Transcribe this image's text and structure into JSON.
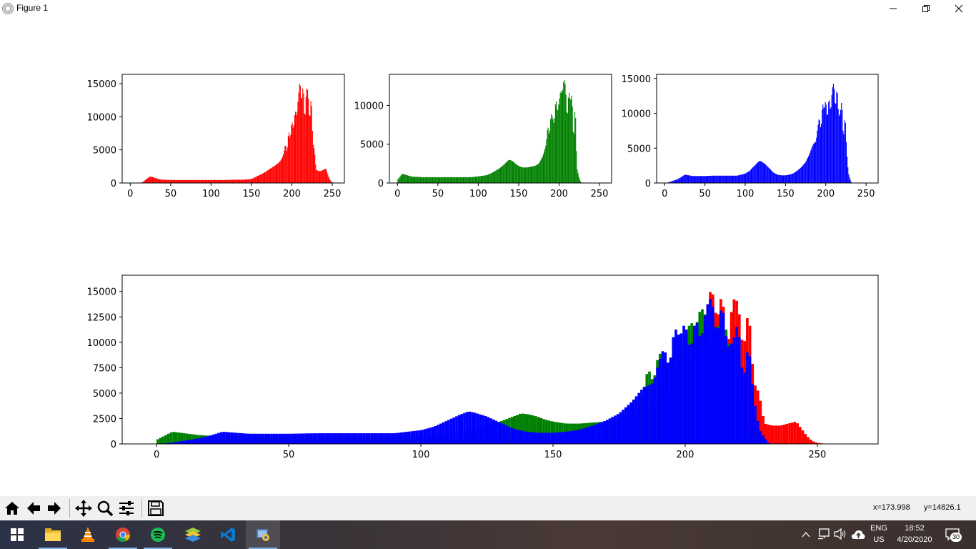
{
  "window": {
    "title": "Figure 1"
  },
  "toolbar": {
    "buttons": [
      {
        "name": "home-icon"
      },
      {
        "name": "back-arrow-icon"
      },
      {
        "name": "forward-arrow-icon"
      },
      {
        "name": "pan-icon"
      },
      {
        "name": "zoom-icon"
      },
      {
        "name": "configure-subplots-icon"
      },
      {
        "name": "save-icon"
      }
    ],
    "x_readout": "x=173.998",
    "y_readout": "y=14826.1"
  },
  "taskbar": {
    "apps": [
      "windows-start-icon",
      "file-explorer-icon",
      "vlc-icon",
      "chrome-icon",
      "spotify-icon",
      "bluestacks-icon",
      "vscode-icon",
      "python-icon"
    ],
    "language": "ENG",
    "region": "US",
    "time": "18:52",
    "date": "4/20/2020",
    "notifications": "30"
  },
  "chart_data": [
    {
      "type": "bar",
      "color": "#ff0000",
      "xlim": [
        -10,
        265
      ],
      "ylim": [
        0,
        16400
      ],
      "xticks": [
        0,
        50,
        100,
        150,
        200,
        250
      ],
      "yticks": [
        0,
        5000,
        10000,
        15000
      ],
      "x": [
        0,
        5,
        10,
        15,
        20,
        25,
        30,
        35,
        40,
        50,
        60,
        70,
        80,
        90,
        100,
        110,
        120,
        130,
        140,
        150,
        155,
        160,
        165,
        170,
        175,
        180,
        185,
        188,
        190,
        192,
        194,
        196,
        198,
        200,
        202,
        204,
        206,
        208,
        210,
        212,
        214,
        216,
        218,
        220,
        222,
        224,
        226,
        228,
        230,
        233,
        236,
        239,
        242,
        244,
        246,
        248,
        250,
        252,
        254,
        256
      ],
      "values": [
        0,
        0,
        0,
        100,
        600,
        1000,
        800,
        600,
        500,
        450,
        450,
        450,
        450,
        450,
        450,
        450,
        450,
        500,
        500,
        600,
        900,
        1200,
        1500,
        1900,
        2300,
        2700,
        3200,
        3800,
        4500,
        6000,
        4500,
        8000,
        6500,
        9500,
        8000,
        11000,
        10000,
        13000,
        15600,
        12000,
        15000,
        9000,
        14300,
        14000,
        9000,
        13500,
        6000,
        5000,
        2000,
        1800,
        1800,
        2000,
        2200,
        1500,
        800,
        300,
        100,
        50,
        0,
        0
      ]
    },
    {
      "type": "bar",
      "color": "#008000",
      "xlim": [
        -10,
        265
      ],
      "ylim": [
        0,
        14000
      ],
      "xticks": [
        0,
        50,
        100,
        150,
        200,
        250
      ],
      "yticks": [
        0,
        5000,
        10000
      ],
      "x": [
        0,
        3,
        6,
        9,
        12,
        15,
        20,
        25,
        30,
        40,
        50,
        60,
        70,
        80,
        90,
        100,
        110,
        115,
        120,
        125,
        130,
        135,
        138,
        141,
        144,
        147,
        150,
        155,
        160,
        165,
        170,
        175,
        180,
        184,
        186,
        188,
        190,
        192,
        194,
        196,
        198,
        200,
        202,
        204,
        206,
        208,
        210,
        212,
        214,
        216,
        218,
        220,
        222,
        224,
        226,
        228,
        230,
        232,
        234
      ],
      "values": [
        400,
        800,
        1200,
        1100,
        1000,
        900,
        800,
        800,
        750,
        750,
        750,
        750,
        750,
        750,
        750,
        850,
        1000,
        1200,
        1500,
        1800,
        2200,
        2700,
        3000,
        2900,
        2700,
        2400,
        2200,
        2000,
        2000,
        2100,
        2200,
        2500,
        3500,
        5000,
        7500,
        6000,
        9000,
        8500,
        7500,
        11000,
        9000,
        10500,
        12000,
        11500,
        13500,
        12500,
        8000,
        12000,
        10500,
        11500,
        5000,
        10500,
        2000,
        1000,
        300,
        0,
        0,
        0,
        0
      ]
    },
    {
      "type": "bar",
      "color": "#0000ff",
      "xlim": [
        -10,
        265
      ],
      "ylim": [
        0,
        15600
      ],
      "xticks": [
        0,
        50,
        100,
        150,
        200,
        250
      ],
      "yticks": [
        0,
        5000,
        10000,
        15000
      ],
      "x": [
        0,
        5,
        10,
        15,
        20,
        25,
        30,
        35,
        40,
        50,
        60,
        70,
        80,
        90,
        100,
        105,
        110,
        115,
        118,
        120,
        125,
        130,
        135,
        140,
        145,
        150,
        155,
        160,
        165,
        170,
        175,
        180,
        184,
        188,
        190,
        192,
        194,
        196,
        198,
        200,
        202,
        204,
        206,
        208,
        210,
        212,
        214,
        216,
        218,
        220,
        222,
        224,
        226,
        228,
        230,
        232,
        234,
        236
      ],
      "values": [
        0,
        100,
        300,
        500,
        800,
        1200,
        1100,
        1000,
        1000,
        1000,
        1050,
        1050,
        1050,
        1050,
        1350,
        1700,
        2300,
        2900,
        3200,
        3100,
        2700,
        2100,
        1500,
        1200,
        1100,
        1100,
        1200,
        1400,
        1800,
        2300,
        3000,
        4200,
        5500,
        6000,
        8000,
        9500,
        7500,
        11500,
        10500,
        12000,
        9000,
        12500,
        10000,
        13500,
        14500,
        10500,
        14000,
        9500,
        10000,
        12000,
        6000,
        10000,
        4500,
        1500,
        600,
        0,
        0,
        0
      ]
    },
    {
      "type": "bar",
      "series": [
        {
          "color": "#ff0000",
          "x": [
            0,
            5,
            10,
            15,
            20,
            25,
            30,
            35,
            40,
            50,
            60,
            70,
            80,
            90,
            100,
            110,
            120,
            130,
            140,
            150,
            155,
            160,
            165,
            170,
            175,
            180,
            185,
            188,
            190,
            192,
            194,
            196,
            198,
            200,
            202,
            204,
            206,
            208,
            210,
            212,
            214,
            216,
            218,
            220,
            222,
            224,
            226,
            228,
            230,
            233,
            236,
            239,
            242,
            244,
            246,
            248,
            250,
            252,
            254,
            256
          ],
          "values": [
            0,
            0,
            0,
            100,
            600,
            1000,
            800,
            600,
            500,
            450,
            450,
            450,
            450,
            450,
            450,
            450,
            450,
            500,
            500,
            600,
            900,
            1200,
            1500,
            1900,
            2300,
            2700,
            3200,
            3800,
            4500,
            6000,
            4500,
            8000,
            6500,
            9500,
            8000,
            11000,
            10000,
            13000,
            15600,
            12000,
            15000,
            9000,
            14300,
            14000,
            9000,
            13500,
            6000,
            5000,
            2000,
            1800,
            1800,
            2000,
            2200,
            1500,
            800,
            300,
            100,
            50,
            0,
            0
          ]
        },
        {
          "color": "#008000",
          "x": [
            0,
            3,
            6,
            9,
            12,
            15,
            20,
            25,
            30,
            40,
            50,
            60,
            70,
            80,
            90,
            100,
            110,
            115,
            120,
            125,
            130,
            135,
            138,
            141,
            144,
            147,
            150,
            155,
            160,
            165,
            170,
            175,
            180,
            184,
            186,
            188,
            190,
            192,
            194,
            196,
            198,
            200,
            202,
            204,
            206,
            208,
            210,
            212,
            214,
            216,
            218,
            220,
            222,
            224,
            226,
            228,
            230,
            232,
            234
          ],
          "values": [
            400,
            800,
            1200,
            1100,
            1000,
            900,
            800,
            800,
            750,
            750,
            750,
            750,
            750,
            750,
            750,
            850,
            1000,
            1200,
            1500,
            1800,
            2200,
            2700,
            3000,
            2900,
            2700,
            2400,
            2200,
            2000,
            2000,
            2100,
            2200,
            2500,
            3500,
            5000,
            7500,
            6000,
            9000,
            8500,
            7500,
            11000,
            9000,
            10500,
            12000,
            11500,
            13500,
            12500,
            8000,
            12000,
            10500,
            11500,
            5000,
            10500,
            2000,
            1000,
            300,
            0,
            0,
            0,
            0
          ]
        },
        {
          "color": "#0000ff",
          "x": [
            0,
            5,
            10,
            15,
            20,
            25,
            30,
            35,
            40,
            50,
            60,
            70,
            80,
            90,
            100,
            105,
            110,
            115,
            118,
            120,
            125,
            130,
            135,
            140,
            145,
            150,
            155,
            160,
            165,
            170,
            175,
            180,
            184,
            188,
            190,
            192,
            194,
            196,
            198,
            200,
            202,
            204,
            206,
            208,
            210,
            212,
            214,
            216,
            218,
            220,
            222,
            224,
            226,
            228,
            230,
            232,
            234,
            236
          ],
          "values": [
            0,
            100,
            300,
            500,
            800,
            1200,
            1100,
            1000,
            1000,
            1000,
            1050,
            1050,
            1050,
            1050,
            1350,
            1700,
            2300,
            2900,
            3200,
            3100,
            2700,
            2100,
            1500,
            1200,
            1100,
            1100,
            1200,
            1400,
            1800,
            2300,
            3000,
            4200,
            5500,
            6000,
            8000,
            9500,
            7500,
            11500,
            10500,
            12000,
            9000,
            12500,
            10000,
            13500,
            14500,
            10500,
            14000,
            9500,
            10000,
            12000,
            6000,
            10000,
            4500,
            1500,
            600,
            0,
            0,
            0
          ]
        }
      ],
      "xlim": [
        -13,
        273
      ],
      "ylim": [
        0,
        16600
      ],
      "xticks": [
        0,
        50,
        100,
        150,
        200,
        250
      ],
      "yticks": [
        0,
        2500,
        5000,
        7500,
        10000,
        12500,
        15000
      ]
    }
  ]
}
